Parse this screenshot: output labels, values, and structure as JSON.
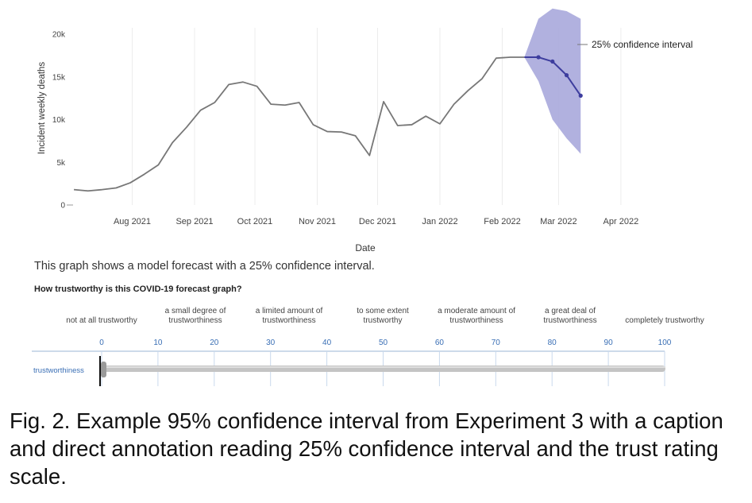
{
  "chart_data": {
    "type": "line",
    "xlabel": "Date",
    "ylabel": "Incident weekly deaths",
    "ylim": [
      0,
      20000
    ],
    "y_ticks": [
      0,
      5000,
      10000,
      15000,
      20000
    ],
    "y_tick_labels": [
      "0",
      "5k",
      "10k",
      "15k",
      "20k"
    ],
    "x_range": [
      "2021-07-01",
      "2022-04-20"
    ],
    "x_ticks": [
      "2021-08-01",
      "2021-09-01",
      "2021-10-01",
      "2021-11-01",
      "2021-12-01",
      "2022-01-01",
      "2022-02-01",
      "2022-03-01",
      "2022-04-01"
    ],
    "x_tick_labels": [
      "Aug 2021",
      "Sep 2021",
      "Oct 2021",
      "Nov 2021",
      "Dec 2021",
      "Jan 2022",
      "Feb 2022",
      "Mar 2022",
      "Apr 2022"
    ],
    "grid": "x",
    "series": [
      {
        "name": "",
        "color": "#777777",
        "x": [
          "2021-07-03",
          "2021-07-10",
          "2021-07-17",
          "2021-07-24",
          "2021-07-31",
          "2021-08-07",
          "2021-08-14",
          "2021-08-21",
          "2021-08-28",
          "2021-09-04",
          "2021-09-11",
          "2021-09-18",
          "2021-09-25",
          "2021-10-02",
          "2021-10-09",
          "2021-10-16",
          "2021-10-23",
          "2021-10-30",
          "2021-11-06",
          "2021-11-13",
          "2021-11-20",
          "2021-11-27",
          "2021-12-04",
          "2021-12-11",
          "2021-12-18",
          "2021-12-25",
          "2022-01-01",
          "2022-01-08",
          "2022-01-15",
          "2022-01-22",
          "2022-01-29",
          "2022-02-05",
          "2022-02-12"
        ],
        "values": [
          1800,
          1650,
          1800,
          2000,
          2600,
          3600,
          4700,
          7300,
          9100,
          11100,
          12000,
          14100,
          14400,
          13900,
          11800,
          11700,
          12000,
          9400,
          8600,
          8550,
          8100,
          5800,
          12100,
          9300,
          9400,
          10400,
          9500,
          11800,
          13400,
          14800,
          17200,
          17300,
          17300
        ]
      },
      {
        "name": "",
        "color": "#3d3d9e",
        "x": [
          "2022-02-12",
          "2022-02-19",
          "2022-02-26",
          "2022-03-05",
          "2022-03-12"
        ],
        "values": [
          17300,
          17300,
          16800,
          15200,
          12800
        ]
      }
    ],
    "band": {
      "label": "25% confidence interval",
      "color": "#a8a8dc",
      "x": [
        "2022-02-12",
        "2022-02-19",
        "2022-02-26",
        "2022-03-05",
        "2022-03-12"
      ],
      "upper": [
        17300,
        21800,
        23000,
        22700,
        21800
      ],
      "lower": [
        17300,
        14500,
        10000,
        7800,
        6000
      ]
    }
  },
  "caption": "This graph shows a model forecast with a 25% confidence interval.",
  "question": "How trustworthy is this COVID-19 forecast graph?",
  "anchors": [
    {
      "lines": [
        "not at all trustworthy"
      ],
      "value": 0
    },
    {
      "lines": [
        "a small degree of",
        "trustworthiness"
      ],
      "value": 17
    },
    {
      "lines": [
        "a limited amount of",
        "trustworthiness"
      ],
      "value": 33
    },
    {
      "lines": [
        "to some extent",
        "trustworthy"
      ],
      "value": 50
    },
    {
      "lines": [
        "a moderate amount of",
        "trustworthiness"
      ],
      "value": 67
    },
    {
      "lines": [
        "a great deal of",
        "trustworthiness"
      ],
      "value": 83
    },
    {
      "lines": [
        "completely trustworthy"
      ],
      "value": 100
    }
  ],
  "slider": {
    "label": "trustworthiness",
    "min": 0,
    "max": 100,
    "ticks": [
      0,
      10,
      20,
      30,
      40,
      50,
      60,
      70,
      80,
      90,
      100
    ],
    "value": 0
  },
  "figure_caption": "Fig. 2.  Example 95% confidence interval from Experiment 3 with a caption and direct annotation reading 25% confidence interval and the trust rating scale."
}
